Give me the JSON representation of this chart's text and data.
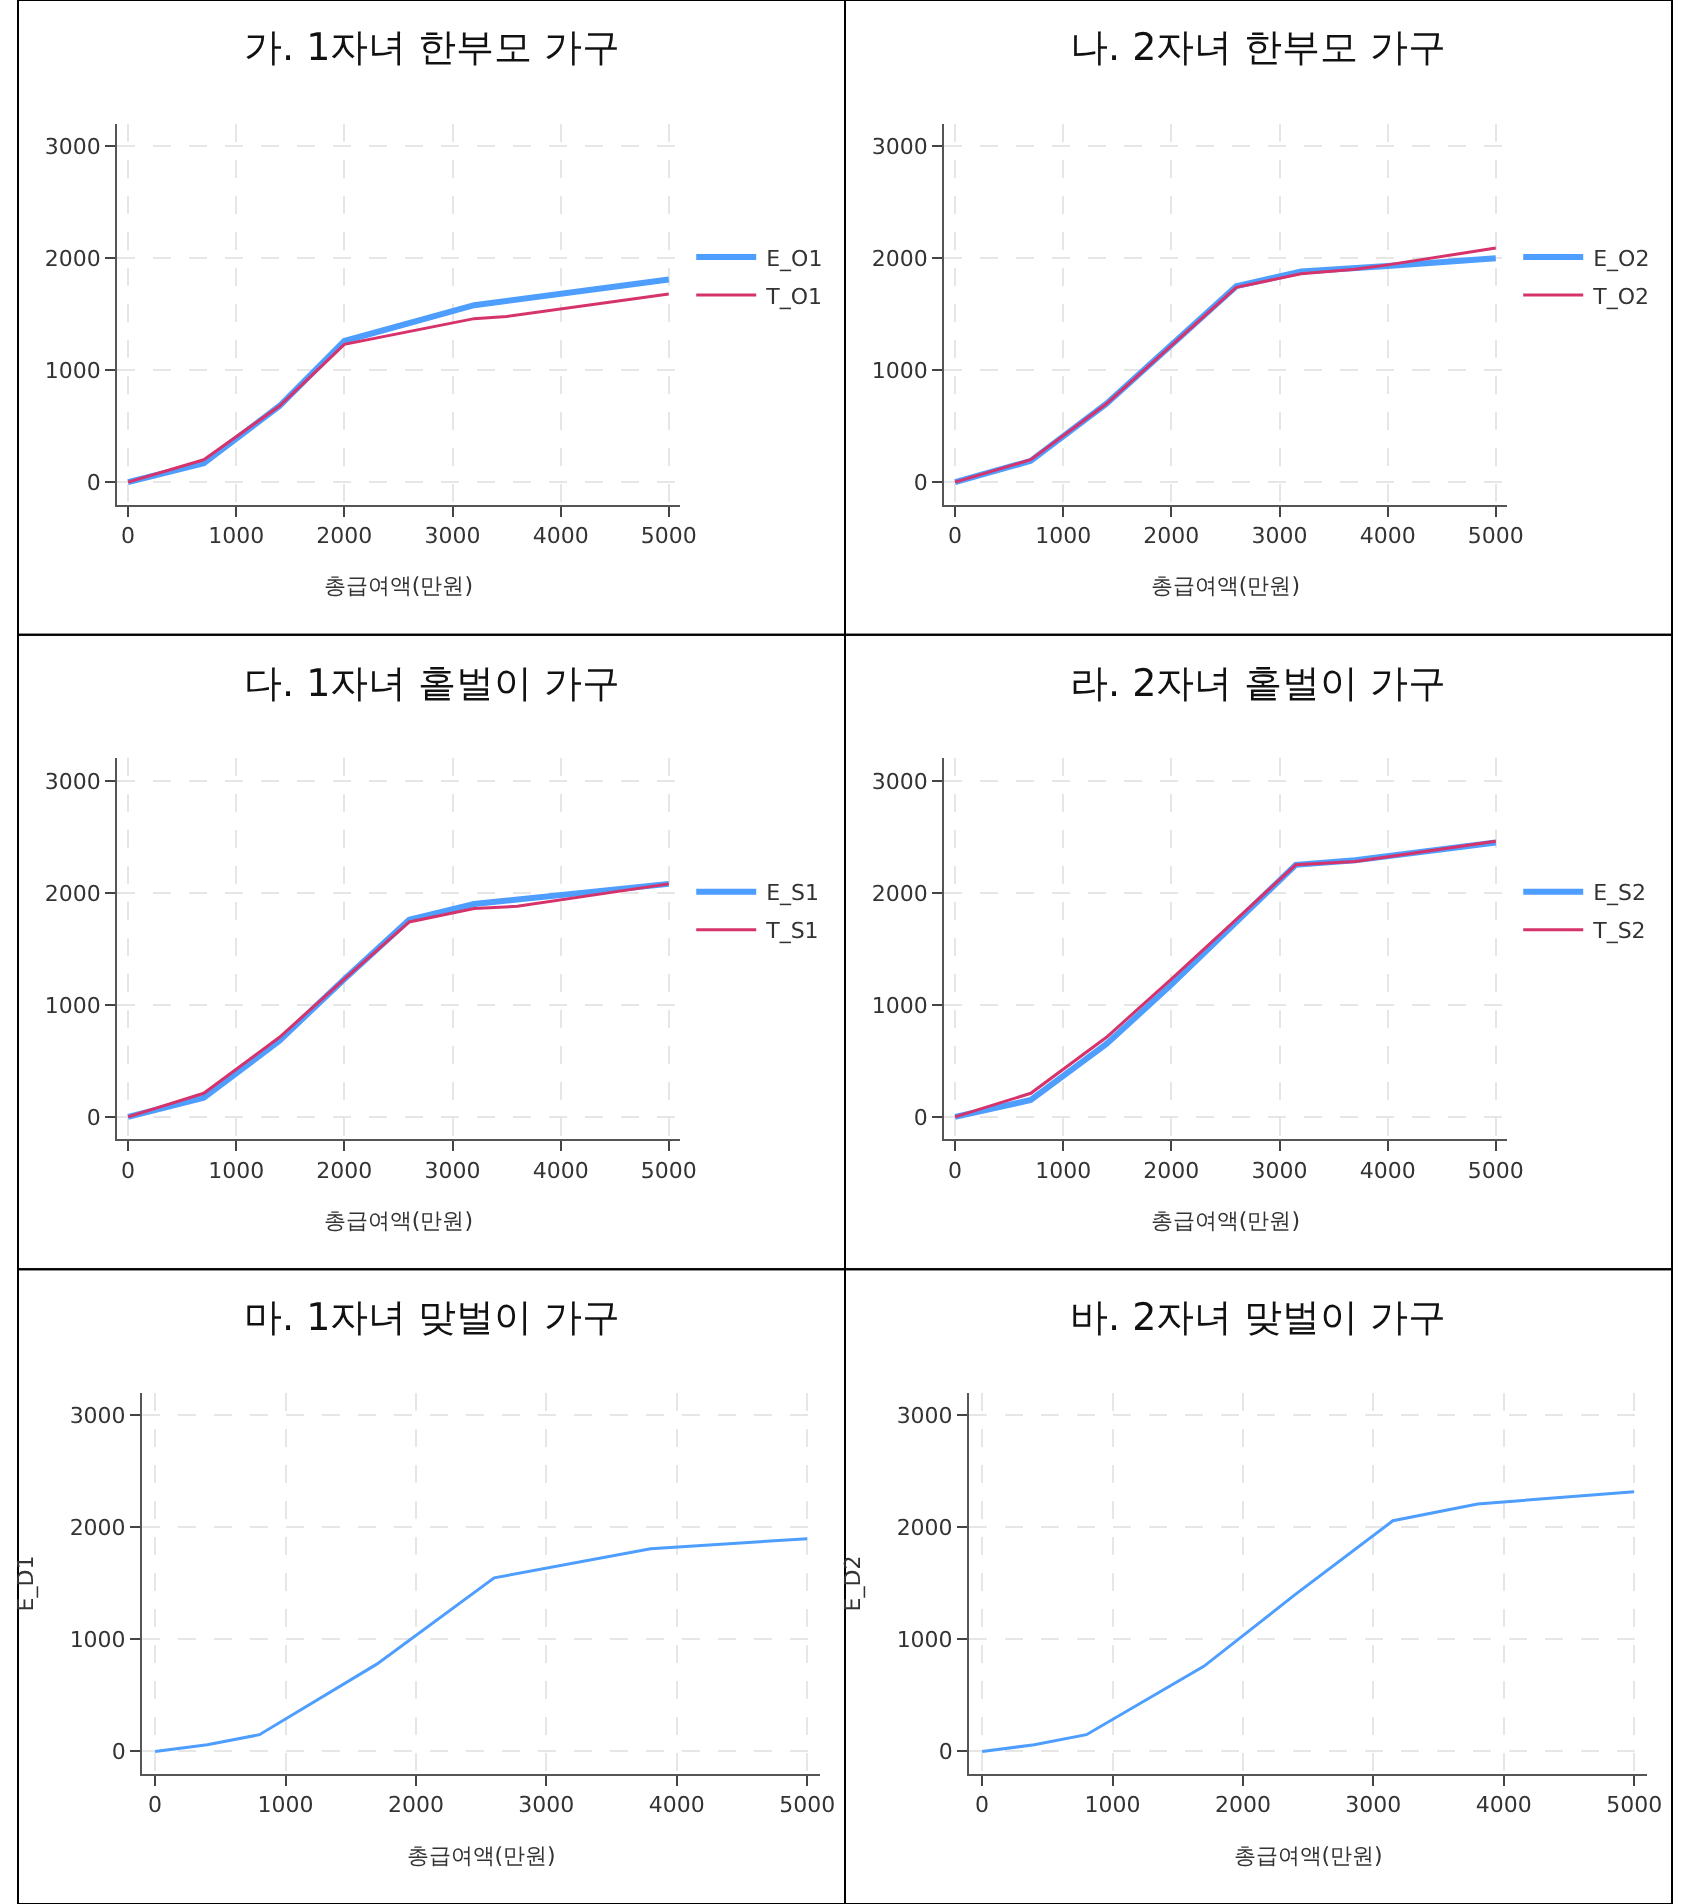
{
  "chart_data": [
    {
      "type": "line",
      "title": "가. 1자녀 한부모 가구",
      "xlabel": "총급여액(만원)",
      "xlim": [
        -100,
        5100
      ],
      "xticks": [
        0,
        1000,
        2000,
        3000,
        4000,
        5000
      ],
      "ylim": [
        -200,
        3200
      ],
      "yticks": [
        0,
        1000,
        2000,
        3000
      ],
      "grid": true,
      "legend": "right",
      "series": [
        {
          "name": "E_O1",
          "color": "#4d9eff",
          "x": [
            0,
            700,
            1400,
            2000,
            3200,
            5000
          ],
          "values": [
            0,
            170,
            680,
            1260,
            1580,
            1810
          ]
        },
        {
          "name": "T_O1",
          "color": "#d6336c",
          "x": [
            0,
            700,
            1400,
            2000,
            3200,
            3500,
            5000
          ],
          "values": [
            0,
            200,
            680,
            1230,
            1460,
            1480,
            1680
          ]
        }
      ]
    },
    {
      "type": "line",
      "title": "나. 2자녀 한부모 가구",
      "xlabel": "총급여액(만원)",
      "xlim": [
        -100,
        5100
      ],
      "xticks": [
        0,
        1000,
        2000,
        3000,
        4000,
        5000
      ],
      "ylim": [
        -200,
        3200
      ],
      "yticks": [
        0,
        1000,
        2000,
        3000
      ],
      "grid": true,
      "legend": "right",
      "series": [
        {
          "name": "E_O2",
          "color": "#4d9eff",
          "x": [
            0,
            700,
            1400,
            2600,
            3200,
            4000,
            5000
          ],
          "values": [
            0,
            190,
            700,
            1750,
            1880,
            1930,
            2000
          ]
        },
        {
          "name": "T_O2",
          "color": "#d6336c",
          "x": [
            0,
            700,
            1400,
            2600,
            3200,
            3700,
            4000,
            5000
          ],
          "values": [
            0,
            200,
            700,
            1740,
            1860,
            1900,
            1940,
            2090
          ]
        }
      ]
    },
    {
      "type": "line",
      "title": "다. 1자녀 홑벌이 가구",
      "xlabel": "총급여액(만원)",
      "xlim": [
        -100,
        5100
      ],
      "xticks": [
        0,
        1000,
        2000,
        3000,
        4000,
        5000
      ],
      "ylim": [
        -200,
        3200
      ],
      "yticks": [
        0,
        1000,
        2000,
        3000
      ],
      "grid": true,
      "legend": "right",
      "series": [
        {
          "name": "E_S1",
          "color": "#4d9eff",
          "x": [
            0,
            700,
            1400,
            2000,
            2600,
            3200,
            5000
          ],
          "values": [
            0,
            170,
            680,
            1230,
            1760,
            1900,
            2080
          ]
        },
        {
          "name": "T_S1",
          "color": "#d6336c",
          "x": [
            0,
            700,
            1400,
            2000,
            2600,
            3200,
            3600,
            5000
          ],
          "values": [
            0,
            210,
            710,
            1230,
            1740,
            1860,
            1880,
            2080
          ]
        }
      ]
    },
    {
      "type": "line",
      "title": "라. 2자녀 홑벌이 가구",
      "xlabel": "총급여액(만원)",
      "xlim": [
        -100,
        5100
      ],
      "xticks": [
        0,
        1000,
        2000,
        3000,
        4000,
        5000
      ],
      "ylim": [
        -200,
        3200
      ],
      "yticks": [
        0,
        1000,
        2000,
        3000
      ],
      "grid": true,
      "legend": "right",
      "series": [
        {
          "name": "E_S2",
          "color": "#4d9eff",
          "x": [
            0,
            700,
            1400,
            2000,
            3150,
            3700,
            5000
          ],
          "values": [
            0,
            150,
            650,
            1180,
            2250,
            2290,
            2450
          ]
        },
        {
          "name": "T_S2",
          "color": "#d6336c",
          "x": [
            0,
            700,
            1400,
            2000,
            3150,
            3700,
            5000
          ],
          "values": [
            0,
            210,
            710,
            1230,
            2250,
            2280,
            2460
          ]
        }
      ]
    },
    {
      "type": "line",
      "title": "마. 1자녀 맞벌이 가구",
      "xlabel": "총급여액(만원)",
      "ylabel": "E_D1",
      "xlim": [
        -100,
        5100
      ],
      "xticks": [
        0,
        1000,
        2000,
        3000,
        4000,
        5000
      ],
      "ylim": [
        -200,
        3200
      ],
      "yticks": [
        0,
        1000,
        2000,
        3000
      ],
      "grid": true,
      "series": [
        {
          "color": "#4d9eff",
          "x": [
            0,
            400,
            800,
            1700,
            2600,
            3800,
            5000
          ],
          "values": [
            0,
            60,
            150,
            780,
            1550,
            1810,
            1900
          ]
        }
      ]
    },
    {
      "type": "line",
      "title": "바. 2자녀 맞벌이 가구",
      "xlabel": "총급여액(만원)",
      "ylabel": "E_D2",
      "xlim": [
        -100,
        5100
      ],
      "xticks": [
        0,
        1000,
        2000,
        3000,
        4000,
        5000
      ],
      "ylim": [
        -200,
        3200
      ],
      "yticks": [
        0,
        1000,
        2000,
        3000
      ],
      "grid": true,
      "series": [
        {
          "color": "#4d9eff",
          "x": [
            0,
            400,
            800,
            1700,
            2400,
            3150,
            3800,
            5000
          ],
          "values": [
            0,
            60,
            150,
            760,
            1400,
            2060,
            2210,
            2320
          ]
        }
      ]
    }
  ]
}
